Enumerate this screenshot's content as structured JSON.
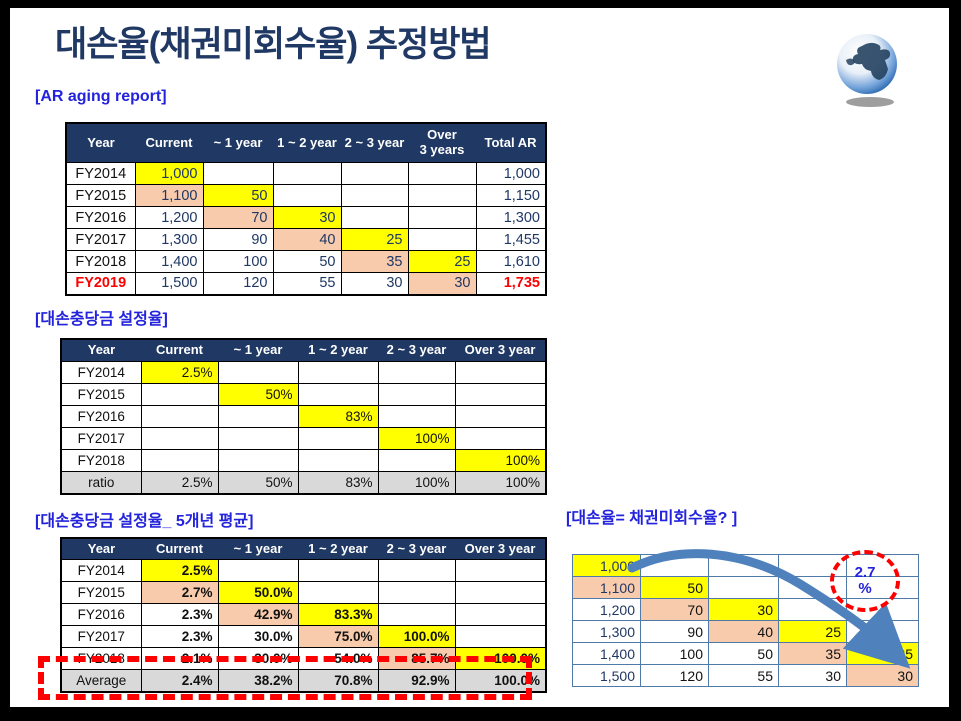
{
  "title": "대손율(채권미회수율) 추정방법",
  "colors": {
    "yellow": "#FFFF00",
    "peach": "#F8CBAD",
    "gray": "#D9D9D9",
    "navy": "#1F3864",
    "headernavy": "#1F3864",
    "red": "#FF0000",
    "labelblue": "#2323DD",
    "arrowblue": "#4F81BD",
    "borderblue": "#4E79A8"
  },
  "icons": {
    "globe": "globe-icon"
  },
  "ar_aging": {
    "label": "[AR aging report]",
    "table": {
      "headers": [
        "Year",
        "Current",
        "~ 1 year",
        "1 ~ 2 year",
        "2 ~ 3 year",
        "Over\n3 years",
        "Total AR"
      ],
      "rows": [
        {
          "cells": [
            {
              "t": "FY2014",
              "lbl": 1
            },
            {
              "t": "1,000",
              "bg": "yellow",
              "fg": "navy"
            },
            {
              "t": ""
            },
            {
              "t": ""
            },
            {
              "t": ""
            },
            {
              "t": ""
            },
            {
              "t": "1,000",
              "fg": "navy"
            }
          ]
        },
        {
          "cells": [
            {
              "t": "FY2015",
              "lbl": 1
            },
            {
              "t": "1,100",
              "bg": "peach",
              "fg": "navy"
            },
            {
              "t": "50",
              "bg": "yellow",
              "fg": "navy"
            },
            {
              "t": ""
            },
            {
              "t": ""
            },
            {
              "t": ""
            },
            {
              "t": "1,150",
              "fg": "navy"
            }
          ]
        },
        {
          "cells": [
            {
              "t": "FY2016",
              "lbl": 1
            },
            {
              "t": "1,200",
              "fg": "navy"
            },
            {
              "t": "70",
              "bg": "peach",
              "fg": "navy"
            },
            {
              "t": "30",
              "bg": "yellow",
              "fg": "navy"
            },
            {
              "t": ""
            },
            {
              "t": ""
            },
            {
              "t": "1,300",
              "fg": "navy"
            }
          ]
        },
        {
          "cells": [
            {
              "t": "FY2017",
              "lbl": 1
            },
            {
              "t": "1,300",
              "fg": "navy"
            },
            {
              "t": "90",
              "fg": "navy"
            },
            {
              "t": "40",
              "bg": "peach",
              "fg": "navy"
            },
            {
              "t": "25",
              "bg": "yellow",
              "fg": "navy"
            },
            {
              "t": ""
            },
            {
              "t": "1,455",
              "fg": "navy"
            }
          ]
        },
        {
          "cells": [
            {
              "t": "FY2018",
              "lbl": 1
            },
            {
              "t": "1,400",
              "fg": "navy"
            },
            {
              "t": "100",
              "fg": "navy"
            },
            {
              "t": "50",
              "fg": "navy"
            },
            {
              "t": "35",
              "bg": "peach",
              "fg": "navy"
            },
            {
              "t": "25",
              "bg": "yellow",
              "fg": "navy"
            },
            {
              "t": "1,610",
              "fg": "navy"
            }
          ]
        },
        {
          "cells": [
            {
              "t": "FY2019",
              "lbl": 1,
              "fg": "red",
              "b": 1
            },
            {
              "t": "1,500",
              "fg": "navy"
            },
            {
              "t": "120",
              "fg": "navy"
            },
            {
              "t": "55",
              "fg": "navy"
            },
            {
              "t": "30",
              "fg": "navy"
            },
            {
              "t": "30",
              "bg": "peach",
              "fg": "navy"
            },
            {
              "t": "1,735",
              "fg": "red",
              "b": 1
            }
          ]
        }
      ]
    }
  },
  "allowance": {
    "label": "[대손충당금 설정율]",
    "table": {
      "headers": [
        "Year",
        "Current",
        "~ 1 year",
        "1 ~ 2 year",
        "2 ~ 3 year",
        "Over 3 year"
      ],
      "rows": [
        {
          "cells": [
            {
              "t": "FY2014",
              "lbl": 1
            },
            {
              "t": "2.5%",
              "bg": "yellow"
            },
            {
              "t": ""
            },
            {
              "t": ""
            },
            {
              "t": ""
            },
            {
              "t": ""
            }
          ]
        },
        {
          "cells": [
            {
              "t": "FY2015",
              "lbl": 1
            },
            {
              "t": ""
            },
            {
              "t": "50%",
              "bg": "yellow"
            },
            {
              "t": ""
            },
            {
              "t": ""
            },
            {
              "t": ""
            }
          ]
        },
        {
          "cells": [
            {
              "t": "FY2016",
              "lbl": 1
            },
            {
              "t": ""
            },
            {
              "t": ""
            },
            {
              "t": "83%",
              "bg": "yellow"
            },
            {
              "t": ""
            },
            {
              "t": ""
            }
          ]
        },
        {
          "cells": [
            {
              "t": "FY2017",
              "lbl": 1
            },
            {
              "t": ""
            },
            {
              "t": ""
            },
            {
              "t": ""
            },
            {
              "t": "100%",
              "bg": "yellow"
            },
            {
              "t": ""
            }
          ]
        },
        {
          "cells": [
            {
              "t": "FY2018",
              "lbl": 1
            },
            {
              "t": ""
            },
            {
              "t": ""
            },
            {
              "t": ""
            },
            {
              "t": ""
            },
            {
              "t": "100%",
              "bg": "yellow"
            }
          ]
        },
        {
          "bg": "gray",
          "cells": [
            {
              "t": "ratio",
              "lbl": 1
            },
            {
              "t": "2.5%"
            },
            {
              "t": "50%"
            },
            {
              "t": "83%"
            },
            {
              "t": "100%"
            },
            {
              "t": "100%"
            }
          ]
        }
      ]
    }
  },
  "average5": {
    "label": "[대손충당금 설정율_ 5개년 평균]",
    "table": {
      "headers": [
        "Year",
        "Current",
        "~ 1 year",
        "1 ~ 2 year",
        "2 ~ 3 year",
        "Over 3 year"
      ],
      "rows": [
        {
          "cells": [
            {
              "t": "FY2014",
              "lbl": 1
            },
            {
              "t": "2.5%",
              "bg": "yellow",
              "b": 1
            },
            {
              "t": ""
            },
            {
              "t": ""
            },
            {
              "t": ""
            },
            {
              "t": ""
            }
          ]
        },
        {
          "cells": [
            {
              "t": "FY2015",
              "lbl": 1
            },
            {
              "t": "2.7%",
              "bg": "peach",
              "b": 1
            },
            {
              "t": "50.0%",
              "bg": "yellow",
              "b": 1
            },
            {
              "t": ""
            },
            {
              "t": ""
            },
            {
              "t": ""
            }
          ]
        },
        {
          "cells": [
            {
              "t": "FY2016",
              "lbl": 1
            },
            {
              "t": "2.3%",
              "b": 1
            },
            {
              "t": "42.9%",
              "bg": "peach",
              "b": 1
            },
            {
              "t": "83.3%",
              "bg": "yellow",
              "b": 1
            },
            {
              "t": ""
            },
            {
              "t": ""
            }
          ]
        },
        {
          "cells": [
            {
              "t": "FY2017",
              "lbl": 1
            },
            {
              "t": "2.3%",
              "b": 1
            },
            {
              "t": "30.0%",
              "b": 1
            },
            {
              "t": "75.0%",
              "bg": "peach",
              "b": 1
            },
            {
              "t": "100.0%",
              "bg": "yellow",
              "b": 1
            },
            {
              "t": ""
            }
          ]
        },
        {
          "cells": [
            {
              "t": "FY2018",
              "lbl": 1
            },
            {
              "t": "2.1%",
              "b": 1
            },
            {
              "t": "30.0%",
              "b": 1
            },
            {
              "t": "54.0%",
              "b": 1
            },
            {
              "t": "85.7%",
              "bg": "peach",
              "b": 1
            },
            {
              "t": "100.0%",
              "bg": "yellow",
              "b": 1
            }
          ]
        },
        {
          "bg": "gray",
          "cells": [
            {
              "t": "Average",
              "lbl": 1
            },
            {
              "t": "2.4%",
              "b": 1
            },
            {
              "t": "38.2%",
              "b": 1
            },
            {
              "t": "70.8%",
              "b": 1
            },
            {
              "t": "92.9%",
              "b": 1
            },
            {
              "t": "100.0%",
              "b": 1
            }
          ]
        }
      ]
    }
  },
  "estimation": {
    "label": "[대손율= 채권미회수율? ]",
    "badge": {
      "value": "2.7",
      "unit": "%"
    },
    "table": {
      "rows": [
        {
          "cells": [
            {
              "t": "1,000",
              "bg": "yellow",
              "fg": "navy"
            },
            {
              "t": ""
            },
            {
              "t": ""
            },
            {
              "t": ""
            },
            {
              "t": ""
            }
          ]
        },
        {
          "cells": [
            {
              "t": "1,100",
              "bg": "peach",
              "fg": "navy"
            },
            {
              "t": "50",
              "bg": "yellow"
            },
            {
              "t": ""
            },
            {
              "t": ""
            },
            {
              "t": ""
            }
          ]
        },
        {
          "cells": [
            {
              "t": "1,200",
              "fg": "navy"
            },
            {
              "t": "70",
              "bg": "peach"
            },
            {
              "t": "30",
              "bg": "yellow"
            },
            {
              "t": ""
            },
            {
              "t": ""
            }
          ]
        },
        {
          "cells": [
            {
              "t": "1,300",
              "fg": "navy"
            },
            {
              "t": "90"
            },
            {
              "t": "40",
              "bg": "peach"
            },
            {
              "t": "25",
              "bg": "yellow"
            },
            {
              "t": ""
            }
          ]
        },
        {
          "cells": [
            {
              "t": "1,400",
              "fg": "navy"
            },
            {
              "t": "100"
            },
            {
              "t": "50"
            },
            {
              "t": "35",
              "bg": "peach"
            },
            {
              "t": "25",
              "bg": "yellow"
            }
          ]
        },
        {
          "cells": [
            {
              "t": "1,500",
              "fg": "navy"
            },
            {
              "t": "120"
            },
            {
              "t": "55"
            },
            {
              "t": "30"
            },
            {
              "t": "30",
              "bg": "peach"
            }
          ]
        }
      ]
    }
  }
}
